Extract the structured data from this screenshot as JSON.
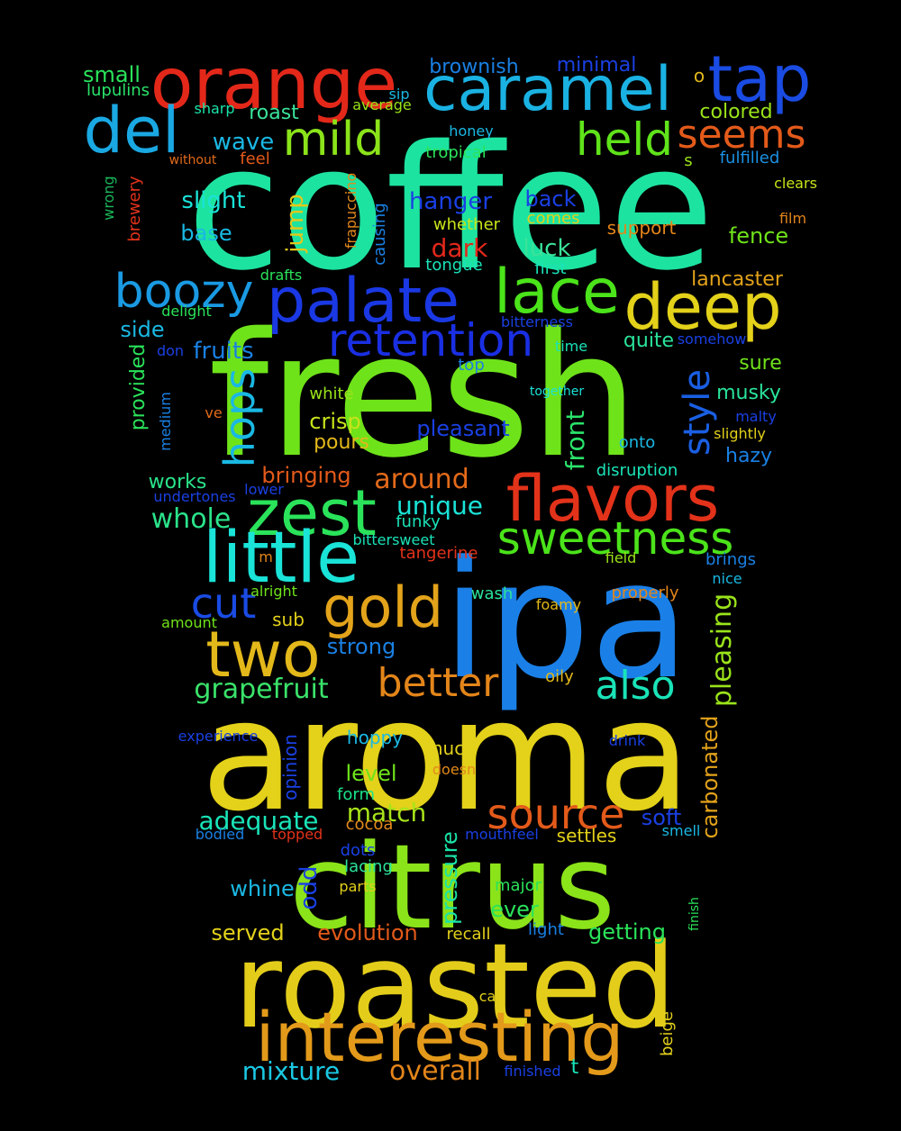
{
  "words": [
    {
      "text": "coffee",
      "color": "#1de3a0"
    },
    {
      "text": "fresh",
      "color": "#6fe31a"
    },
    {
      "text": "ipa",
      "color": "#1a80e8"
    },
    {
      "text": "aroma",
      "color": "#e3d11a"
    },
    {
      "text": "citrus",
      "color": "#8be31a"
    },
    {
      "text": "roasted",
      "color": "#e3cd1a"
    },
    {
      "text": "interesting",
      "color": "#e39a1a"
    },
    {
      "text": "orange",
      "color": "#e3281a"
    },
    {
      "text": "caramel",
      "color": "#1ab2e3"
    },
    {
      "text": "tap",
      "color": "#1a4be3"
    },
    {
      "text": "del",
      "color": "#1aa8e3"
    },
    {
      "text": "mild",
      "color": "#8be31a"
    },
    {
      "text": "held",
      "color": "#5fe31a"
    },
    {
      "text": "seems",
      "color": "#e35a1a"
    },
    {
      "text": "palate",
      "color": "#1a38e3"
    },
    {
      "text": "lace",
      "color": "#4be31a"
    },
    {
      "text": "deep",
      "color": "#e3d11a"
    },
    {
      "text": "boozy",
      "color": "#1a9ae3"
    },
    {
      "text": "retention",
      "color": "#1a2fe3"
    },
    {
      "text": "zest",
      "color": "#2ae35a"
    },
    {
      "text": "flavors",
      "color": "#e3321a"
    },
    {
      "text": "little",
      "color": "#1ae3d8"
    },
    {
      "text": "sweetness",
      "color": "#4be31a"
    },
    {
      "text": "gold",
      "color": "#e3a31a"
    },
    {
      "text": "two",
      "color": "#e3b81a"
    },
    {
      "text": "cut",
      "color": "#1a4be3"
    },
    {
      "text": "better",
      "color": "#e3851a"
    },
    {
      "text": "also",
      "color": "#1ae3b8"
    },
    {
      "text": "source",
      "color": "#e35a1a"
    },
    {
      "text": "overall",
      "color": "#e3851a"
    },
    {
      "text": "mixture",
      "color": "#1ac8e3"
    },
    {
      "text": "hops",
      "color": "#1ab8e3"
    },
    {
      "text": "style",
      "color": "#1a5fe3"
    },
    {
      "text": "grapefruit",
      "color": "#3ae36a"
    },
    {
      "text": "whole",
      "color": "#2ae38a"
    },
    {
      "text": "unique",
      "color": "#1ae3d8"
    },
    {
      "text": "around",
      "color": "#e36a1a"
    },
    {
      "text": "adequate",
      "color": "#1ae3b8"
    },
    {
      "text": "match",
      "color": "#a8e31a"
    },
    {
      "text": "pleasing",
      "color": "#9ae31a"
    },
    {
      "text": "carbonated",
      "color": "#e3a31a"
    },
    {
      "text": "pressure",
      "color": "#1ae3a8"
    },
    {
      "text": "small",
      "color": "#2ae35a"
    },
    {
      "text": "lupulins",
      "color": "#2ae36a"
    },
    {
      "text": "brownish",
      "color": "#1a80e3"
    },
    {
      "text": "minimal",
      "color": "#1a40e3"
    },
    {
      "text": "o",
      "color": "#e3b81a"
    },
    {
      "text": "colored",
      "color": "#9ae31a"
    },
    {
      "text": "sip",
      "color": "#1ab8e3"
    },
    {
      "text": "average",
      "color": "#9ae31a"
    },
    {
      "text": "sharp",
      "color": "#1ae3a8"
    },
    {
      "text": "roast",
      "color": "#3ae39a"
    },
    {
      "text": "wave",
      "color": "#1ab8e3"
    },
    {
      "text": "honey",
      "color": "#1ab8e3"
    },
    {
      "text": "without",
      "color": "#e36a1a"
    },
    {
      "text": "feel",
      "color": "#e35a1a"
    },
    {
      "text": "tropical",
      "color": "#2ae35a"
    },
    {
      "text": "s",
      "color": "#9ae31a"
    },
    {
      "text": "fulfilled",
      "color": "#1a90e3"
    },
    {
      "text": "clears",
      "color": "#c8e31a"
    },
    {
      "text": "wrong",
      "color": "#1ab85a"
    },
    {
      "text": "brewery",
      "color": "#e3321a"
    },
    {
      "text": "slight",
      "color": "#1ae3d8"
    },
    {
      "text": "frapuccino",
      "color": "#e38a1a"
    },
    {
      "text": "jump",
      "color": "#e3c81a"
    },
    {
      "text": "causing",
      "color": "#1a80e3"
    },
    {
      "text": "hanger",
      "color": "#1a40e3"
    },
    {
      "text": "back",
      "color": "#1a40e3"
    },
    {
      "text": "whether",
      "color": "#c8e31a"
    },
    {
      "text": "comes",
      "color": "#e3d11a"
    },
    {
      "text": "support",
      "color": "#e3851a"
    },
    {
      "text": "film",
      "color": "#e3851a"
    },
    {
      "text": "base",
      "color": "#1ab8e3"
    },
    {
      "text": "dark",
      "color": "#e3281a"
    },
    {
      "text": "luck",
      "color": "#3ae39a"
    },
    {
      "text": "fence",
      "color": "#6fe31a"
    },
    {
      "text": "tongue",
      "color": "#1ae3b8"
    },
    {
      "text": "first",
      "color": "#1ae3b8"
    },
    {
      "text": "drafts",
      "color": "#2ae35a"
    },
    {
      "text": "lancaster",
      "color": "#e3a31a"
    },
    {
      "text": "delight",
      "color": "#2ae35a"
    },
    {
      "text": "side",
      "color": "#1ab8e3"
    },
    {
      "text": "bitterness",
      "color": "#1a40e3"
    },
    {
      "text": "don",
      "color": "#1a40e3"
    },
    {
      "text": "provided",
      "color": "#2ae35a"
    },
    {
      "text": "fruits",
      "color": "#1a80e3"
    },
    {
      "text": "quite",
      "color": "#2ae39a"
    },
    {
      "text": "time",
      "color": "#1ae3b8"
    },
    {
      "text": "somehow",
      "color": "#1a40e3"
    },
    {
      "text": "top",
      "color": "#1a80e3"
    },
    {
      "text": "sure",
      "color": "#6fe31a"
    },
    {
      "text": "white",
      "color": "#9ae31a"
    },
    {
      "text": "together",
      "color": "#1ae3d8"
    },
    {
      "text": "musky",
      "color": "#2ae39a"
    },
    {
      "text": "medium",
      "color": "#1a80e3"
    },
    {
      "text": "ve",
      "color": "#e36a1a"
    },
    {
      "text": "crisp",
      "color": "#c8e31a"
    },
    {
      "text": "malty",
      "color": "#1a40e3"
    },
    {
      "text": "pleasant",
      "color": "#1a40e3"
    },
    {
      "text": "front",
      "color": "#2ae36a"
    },
    {
      "text": "slightly",
      "color": "#e3d11a"
    },
    {
      "text": "pours",
      "color": "#e3b81a"
    },
    {
      "text": "onto",
      "color": "#1ab8e3"
    },
    {
      "text": "hazy",
      "color": "#1a80e3"
    },
    {
      "text": "works",
      "color": "#2ae38a"
    },
    {
      "text": "bringing",
      "color": "#e35a1a"
    },
    {
      "text": "disruption",
      "color": "#1ae3b8"
    },
    {
      "text": "undertones",
      "color": "#1a40e3"
    },
    {
      "text": "lower",
      "color": "#1a40e3"
    },
    {
      "text": "funky",
      "color": "#1ae3b8"
    },
    {
      "text": "bittersweet",
      "color": "#1ae3b8"
    },
    {
      "text": "tangerine",
      "color": "#e3321a"
    },
    {
      "text": "m",
      "color": "#e3851a"
    },
    {
      "text": "field",
      "color": "#9ae31a"
    },
    {
      "text": "brings",
      "color": "#1a80e3"
    },
    {
      "text": "nice",
      "color": "#1ab8e3"
    },
    {
      "text": "alright",
      "color": "#6fe31a"
    },
    {
      "text": "wash",
      "color": "#2ae39a"
    },
    {
      "text": "sub",
      "color": "#e3d11a"
    },
    {
      "text": "foamy",
      "color": "#e3b81a"
    },
    {
      "text": "properly",
      "color": "#e3851a"
    },
    {
      "text": "amount",
      "color": "#6fe31a"
    },
    {
      "text": "strong",
      "color": "#1a80e3"
    },
    {
      "text": "oily",
      "color": "#e3b81a"
    },
    {
      "text": "experience",
      "color": "#1a40e3"
    },
    {
      "text": "hoppy",
      "color": "#1ab8e3"
    },
    {
      "text": "drink",
      "color": "#1a40e3"
    },
    {
      "text": "opinion",
      "color": "#1a40e3"
    },
    {
      "text": "much",
      "color": "#e3d11a"
    },
    {
      "text": "level",
      "color": "#6fe31a"
    },
    {
      "text": "doesn",
      "color": "#e38a1a"
    },
    {
      "text": "form",
      "color": "#1ae38a"
    },
    {
      "text": "soft",
      "color": "#1a40e3"
    },
    {
      "text": "cocoa",
      "color": "#e38a1a"
    },
    {
      "text": "bodied",
      "color": "#1a80e3"
    },
    {
      "text": "topped",
      "color": "#e3321a"
    },
    {
      "text": "mouthfeel",
      "color": "#1a40e3"
    },
    {
      "text": "settles",
      "color": "#e3d11a"
    },
    {
      "text": "smell",
      "color": "#1ab8e3"
    },
    {
      "text": "dots",
      "color": "#1a40e3"
    },
    {
      "text": "lacing",
      "color": "#2ae39a"
    },
    {
      "text": "odd",
      "color": "#1a40e3"
    },
    {
      "text": "whine",
      "color": "#1ab8e3"
    },
    {
      "text": "parts",
      "color": "#e3d11a"
    },
    {
      "text": "major",
      "color": "#2ae35a"
    },
    {
      "text": "ever",
      "color": "#2ae35a"
    },
    {
      "text": "finish",
      "color": "#2ae35a"
    },
    {
      "text": "served",
      "color": "#e3d11a"
    },
    {
      "text": "evolution",
      "color": "#e35a1a"
    },
    {
      "text": "recall",
      "color": "#e3d11a"
    },
    {
      "text": "light",
      "color": "#1a80e3"
    },
    {
      "text": "getting",
      "color": "#2ae35a"
    },
    {
      "text": "ca",
      "color": "#e3d11a"
    },
    {
      "text": "beige",
      "color": "#e3d11a"
    },
    {
      "text": "finished",
      "color": "#1a40e3"
    },
    {
      "text": "t",
      "color": "#1ae3b8"
    }
  ]
}
